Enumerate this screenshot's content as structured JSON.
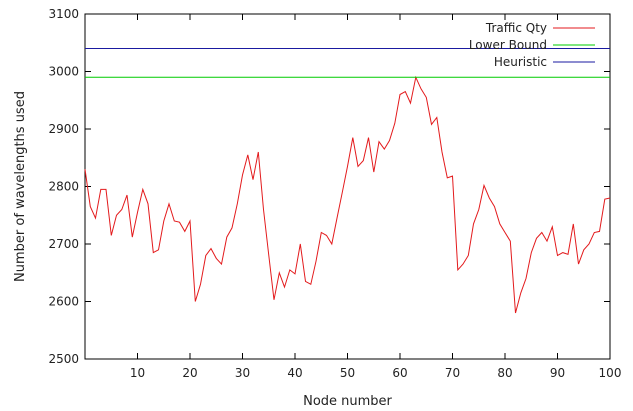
{
  "chart_data": {
    "type": "line",
    "xlabel": "Node number",
    "ylabel": "Number of wavelengths used",
    "xlim": [
      0,
      100
    ],
    "ylim": [
      2500,
      3100
    ],
    "x_ticks": [
      10,
      20,
      30,
      40,
      50,
      60,
      70,
      80,
      90,
      100
    ],
    "y_ticks": [
      2500,
      2600,
      2700,
      2800,
      2900,
      3000,
      3100
    ],
    "legend_position": "top-right",
    "grid": false,
    "series": [
      {
        "name": "Traffic Qty",
        "color": "#e31a1c",
        "x": [
          0,
          1,
          2,
          3,
          4,
          5,
          6,
          7,
          8,
          9,
          10,
          11,
          12,
          13,
          14,
          15,
          16,
          17,
          18,
          19,
          20,
          21,
          22,
          23,
          24,
          25,
          26,
          27,
          28,
          29,
          30,
          31,
          32,
          33,
          34,
          35,
          36,
          37,
          38,
          39,
          40,
          41,
          42,
          43,
          44,
          45,
          46,
          47,
          48,
          49,
          50,
          51,
          52,
          53,
          54,
          55,
          56,
          57,
          58,
          59,
          60,
          61,
          62,
          63,
          64,
          65,
          66,
          67,
          68,
          69,
          70,
          71,
          72,
          73,
          74,
          75,
          76,
          77,
          78,
          79,
          80,
          81,
          82,
          83,
          84,
          85,
          86,
          87,
          88,
          89,
          90,
          91,
          92,
          93,
          94,
          95,
          96,
          97,
          98,
          99,
          100
        ],
        "values": [
          2830,
          2765,
          2745,
          2795,
          2795,
          2715,
          2750,
          2760,
          2785,
          2712,
          2755,
          2795,
          2770,
          2685,
          2690,
          2740,
          2770,
          2740,
          2738,
          2722,
          2740,
          2600,
          2630,
          2680,
          2692,
          2675,
          2665,
          2712,
          2728,
          2770,
          2820,
          2855,
          2812,
          2860,
          2760,
          2680,
          2603,
          2650,
          2625,
          2655,
          2648,
          2700,
          2635,
          2630,
          2670,
          2720,
          2715,
          2700,
          2745,
          2790,
          2835,
          2885,
          2835,
          2845,
          2885,
          2825,
          2878,
          2865,
          2880,
          2910,
          2960,
          2965,
          2945,
          2990,
          2970,
          2955,
          2908,
          2920,
          2860,
          2815,
          2818,
          2655,
          2665,
          2680,
          2735,
          2760,
          2802,
          2780,
          2765,
          2735,
          2720,
          2705,
          2580,
          2615,
          2640,
          2685,
          2710,
          2720,
          2705,
          2730,
          2680,
          2685,
          2682,
          2735,
          2665,
          2690,
          2700,
          2720,
          2722,
          2778,
          2780
        ]
      },
      {
        "name": "Lower Bound",
        "color": "#00cc00",
        "x": [
          0,
          100
        ],
        "values": [
          2990,
          2990
        ]
      },
      {
        "name": "Heuristic",
        "color": "#1a1aa0",
        "x": [
          0,
          100
        ],
        "values": [
          3040,
          3040
        ]
      }
    ]
  }
}
